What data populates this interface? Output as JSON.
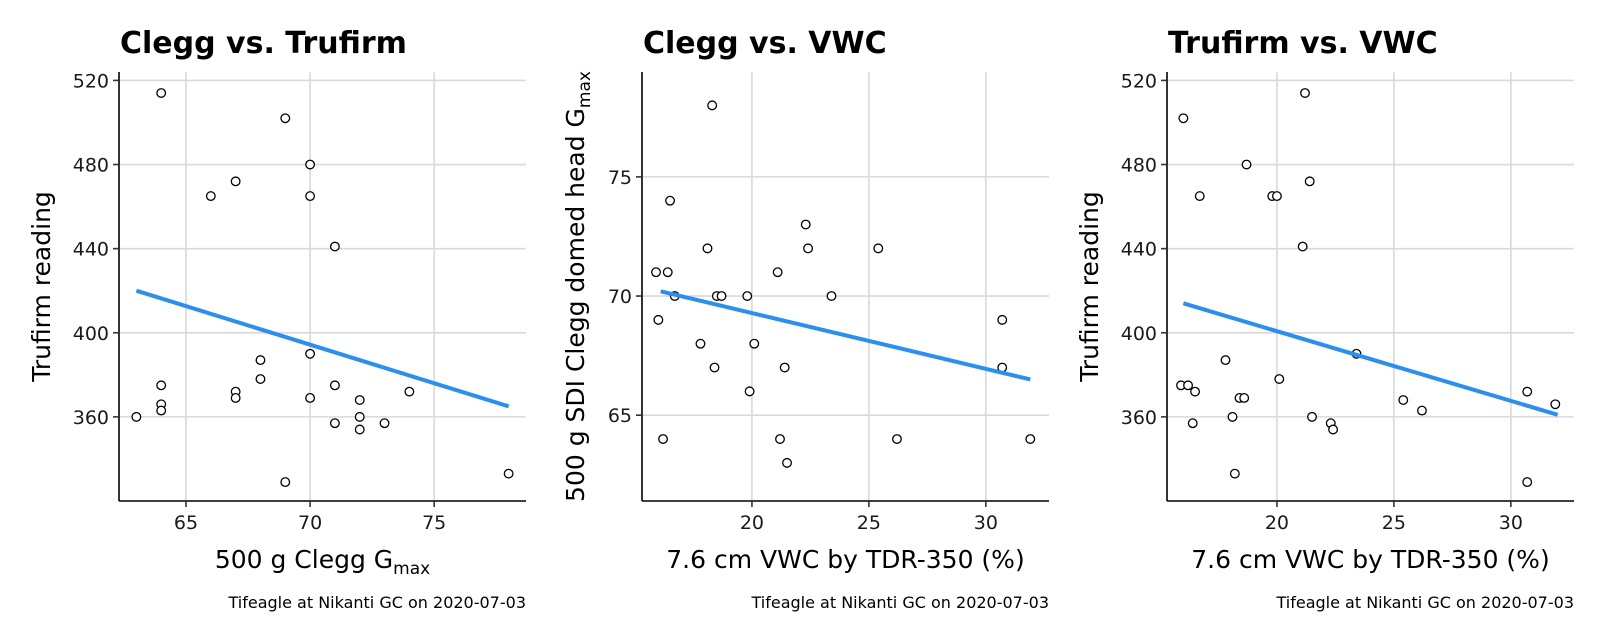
{
  "chart_data": [
    {
      "type": "scatter",
      "title": "Clegg vs. Trufirm",
      "xlabel": "500 g Clegg G",
      "xlabel_sub": "max",
      "ylabel": "Trufirm reading",
      "caption": "Tifeagle at Nikanti GC on 2020-07-03",
      "xlim": [
        62.3,
        78.7
      ],
      "ylim": [
        320,
        524
      ],
      "xticks": [
        65,
        70,
        75
      ],
      "yticks": [
        360,
        400,
        440,
        480,
        520
      ],
      "fit": [
        [
          63,
          420
        ],
        [
          78,
          365
        ]
      ],
      "points": [
        [
          63,
          360
        ],
        [
          64,
          514
        ],
        [
          64,
          375
        ],
        [
          64,
          366
        ],
        [
          64,
          363
        ],
        [
          66,
          465
        ],
        [
          67,
          472
        ],
        [
          67,
          372
        ],
        [
          67,
          369
        ],
        [
          68,
          387
        ],
        [
          68,
          378
        ],
        [
          69,
          502
        ],
        [
          69,
          329
        ],
        [
          70,
          480
        ],
        [
          70,
          465
        ],
        [
          70,
          390
        ],
        [
          70,
          369
        ],
        [
          71,
          441
        ],
        [
          71,
          375
        ],
        [
          71,
          357
        ],
        [
          72,
          368
        ],
        [
          72,
          360
        ],
        [
          72,
          354
        ],
        [
          73,
          357
        ],
        [
          74,
          372
        ],
        [
          78,
          333
        ]
      ]
    },
    {
      "type": "scatter",
      "title": "Clegg vs. VWC",
      "xlabel": "7.6 cm VWC by TDR-350 (%)",
      "ylabel": "500 g SDI Clegg domed head G",
      "ylabel_sub": "max",
      "caption": "Tifeagle at Nikanti GC on 2020-07-03",
      "xlim": [
        15.3,
        32.7
      ],
      "ylim": [
        61.4,
        79.4
      ],
      "xticks": [
        20,
        25,
        30
      ],
      "yticks": [
        65,
        70,
        75
      ],
      "fit": [
        [
          16.1,
          70.2
        ],
        [
          31.9,
          66.5
        ]
      ],
      "points": [
        [
          15.9,
          71
        ],
        [
          16.0,
          69
        ],
        [
          16.2,
          64
        ],
        [
          16.4,
          71
        ],
        [
          16.5,
          74
        ],
        [
          16.7,
          70
        ],
        [
          17.8,
          68
        ],
        [
          18.1,
          72
        ],
        [
          18.3,
          78
        ],
        [
          18.4,
          67
        ],
        [
          18.5,
          70
        ],
        [
          18.7,
          70
        ],
        [
          19.8,
          70
        ],
        [
          19.9,
          66
        ],
        [
          20.1,
          68
        ],
        [
          21.1,
          71
        ],
        [
          21.2,
          64
        ],
        [
          21.4,
          67
        ],
        [
          21.5,
          63
        ],
        [
          22.3,
          73
        ],
        [
          22.4,
          72
        ],
        [
          23.4,
          70
        ],
        [
          25.4,
          72
        ],
        [
          26.2,
          64
        ],
        [
          30.7,
          69
        ],
        [
          30.7,
          67
        ],
        [
          31.9,
          64
        ]
      ]
    },
    {
      "type": "scatter",
      "title": "Trufirm vs. VWC",
      "xlabel": "7.6 cm VWC by TDR-350 (%)",
      "ylabel": "Trufirm reading",
      "caption": "Tifeagle at Nikanti GC on 2020-07-03",
      "xlim": [
        15.3,
        32.7
      ],
      "ylim": [
        320,
        524
      ],
      "xticks": [
        20,
        25,
        30
      ],
      "yticks": [
        360,
        400,
        440,
        480,
        520
      ],
      "fit": [
        [
          16.0,
          414
        ],
        [
          32.0,
          361
        ]
      ],
      "points": [
        [
          15.9,
          375
        ],
        [
          16.0,
          502
        ],
        [
          16.2,
          375
        ],
        [
          16.4,
          357
        ],
        [
          16.5,
          372
        ],
        [
          16.7,
          465
        ],
        [
          17.8,
          387
        ],
        [
          18.1,
          360
        ],
        [
          18.2,
          333
        ],
        [
          18.4,
          369
        ],
        [
          18.6,
          369
        ],
        [
          18.7,
          480
        ],
        [
          19.8,
          465
        ],
        [
          20.0,
          465
        ],
        [
          20.1,
          378
        ],
        [
          21.1,
          441
        ],
        [
          21.2,
          514
        ],
        [
          21.4,
          472
        ],
        [
          21.5,
          360
        ],
        [
          22.3,
          357
        ],
        [
          22.4,
          354
        ],
        [
          23.4,
          390
        ],
        [
          25.4,
          368
        ],
        [
          26.2,
          363
        ],
        [
          30.7,
          372
        ],
        [
          30.7,
          329
        ],
        [
          31.9,
          366
        ]
      ]
    }
  ]
}
